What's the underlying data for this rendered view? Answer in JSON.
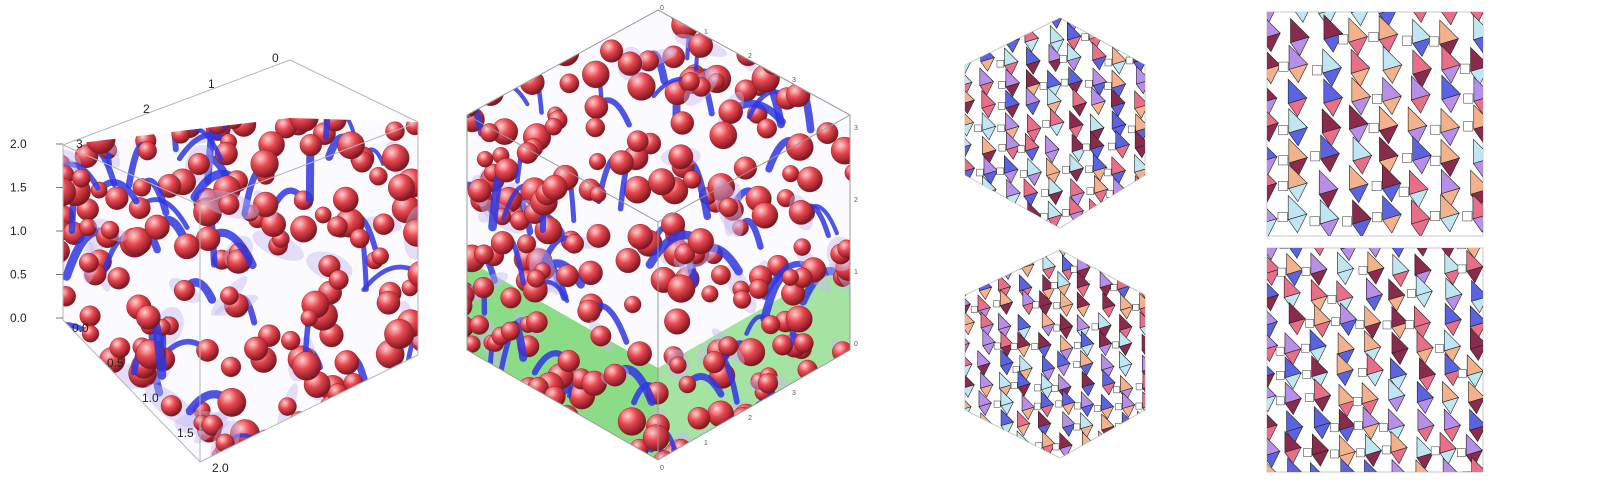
{
  "figure": {
    "panel_a": {
      "z_ticks": [
        "0.0",
        "0.5",
        "1.0",
        "1.5",
        "2.0"
      ],
      "x_ticks": [
        "0.0",
        "0.5",
        "1.0",
        "1.5",
        "2.0"
      ],
      "top_ticks": [
        "0",
        "1",
        "2",
        "3"
      ]
    },
    "panel_b": {
      "top_ticks": [
        "0",
        "1",
        "2",
        "3"
      ],
      "right_ticks": [
        "3",
        "2",
        "1",
        "0"
      ],
      "bottom_ticks": [
        "0",
        "1",
        "2",
        "3"
      ]
    },
    "colors": {
      "sphere": "#e8474f",
      "surface": "#2f37e0",
      "membrane": "#c6b8ef",
      "floor": "#5fcf55",
      "poly_blue": "#5b63e0",
      "poly_violet": "#b88fe8",
      "poly_pink": "#e86f88",
      "poly_peach": "#f4b28c",
      "poly_ice": "#bfe6f2",
      "poly_maroon": "#8a2b4e"
    }
  }
}
